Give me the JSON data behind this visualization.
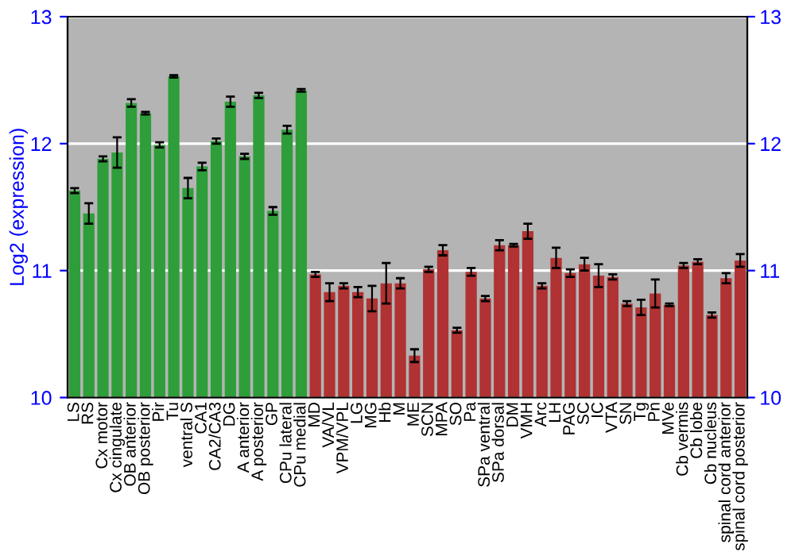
{
  "chart_data": {
    "type": "bar",
    "ylabel": "Log2 (expression)",
    "categories": [
      "LS",
      "RS",
      "Cx motor",
      "Cx cingulate",
      "OB anterior",
      "OB posterior",
      "Pir",
      "Tu",
      "ventral S",
      "CA1",
      "CA2/CA3",
      "DG",
      "A anterior",
      "A posterior",
      "GP",
      "CPu lateral",
      "CPu medial",
      "MD",
      "VA/VL",
      "VPM/VPL",
      "LG",
      "MG",
      "Hb",
      "M",
      "ME",
      "SCN",
      "MPA",
      "SO",
      "Pa",
      "SPa ventral",
      "SPa dorsal",
      "DM",
      "VMH",
      "Arc",
      "LH",
      "PAG",
      "SC",
      "IC",
      "VTA",
      "SN",
      "Tg",
      "Pn",
      "MVe",
      "Cb vermis",
      "Cb lobe",
      "Cb nucleus",
      "spinal cord anterior",
      "spinal cord posterior"
    ],
    "values": [
      11.63,
      11.45,
      11.88,
      11.93,
      12.32,
      12.24,
      11.99,
      12.53,
      11.65,
      11.82,
      12.02,
      12.33,
      11.9,
      12.38,
      11.47,
      12.11,
      12.42,
      10.97,
      10.83,
      10.88,
      10.83,
      10.78,
      10.9,
      10.9,
      10.33,
      11.01,
      11.16,
      10.53,
      10.99,
      10.78,
      11.2,
      11.2,
      11.31,
      10.88,
      11.1,
      10.98,
      11.05,
      10.96,
      10.95,
      10.74,
      10.71,
      10.82,
      10.73,
      11.04,
      11.07,
      10.65,
      10.94,
      11.08
    ],
    "errors": [
      0.02,
      0.08,
      0.02,
      0.12,
      0.03,
      0.01,
      0.02,
      0.01,
      0.08,
      0.03,
      0.02,
      0.04,
      0.02,
      0.02,
      0.03,
      0.03,
      0.01,
      0.02,
      0.07,
      0.02,
      0.04,
      0.1,
      0.16,
      0.04,
      0.05,
      0.02,
      0.04,
      0.02,
      0.03,
      0.02,
      0.04,
      0.01,
      0.06,
      0.02,
      0.08,
      0.03,
      0.05,
      0.09,
      0.02,
      0.02,
      0.06,
      0.11,
      0.01,
      0.02,
      0.02,
      0.02,
      0.04,
      0.05
    ],
    "colors": [
      "#2e9e3a",
      "#2e9e3a",
      "#2e9e3a",
      "#2e9e3a",
      "#2e9e3a",
      "#2e9e3a",
      "#2e9e3a",
      "#2e9e3a",
      "#2e9e3a",
      "#2e9e3a",
      "#2e9e3a",
      "#2e9e3a",
      "#2e9e3a",
      "#2e9e3a",
      "#2e9e3a",
      "#2e9e3a",
      "#2e9e3a",
      "#b03232",
      "#b03232",
      "#b03232",
      "#b03232",
      "#b03232",
      "#b03232",
      "#b03232",
      "#b03232",
      "#b03232",
      "#b03232",
      "#b03232",
      "#b03232",
      "#b03232",
      "#b03232",
      "#b03232",
      "#b03232",
      "#b03232",
      "#b03232",
      "#b03232",
      "#b03232",
      "#b03232",
      "#b03232",
      "#b03232",
      "#b03232",
      "#b03232",
      "#b03232",
      "#b03232",
      "#b03232",
      "#b03232",
      "#b03232",
      "#b03232"
    ],
    "ylim": [
      10,
      13
    ],
    "yticks": [
      10,
      11,
      12,
      13
    ],
    "y2lim": [
      10,
      13
    ],
    "y2ticks": [
      10,
      11,
      12,
      13
    ],
    "grid": "y"
  }
}
